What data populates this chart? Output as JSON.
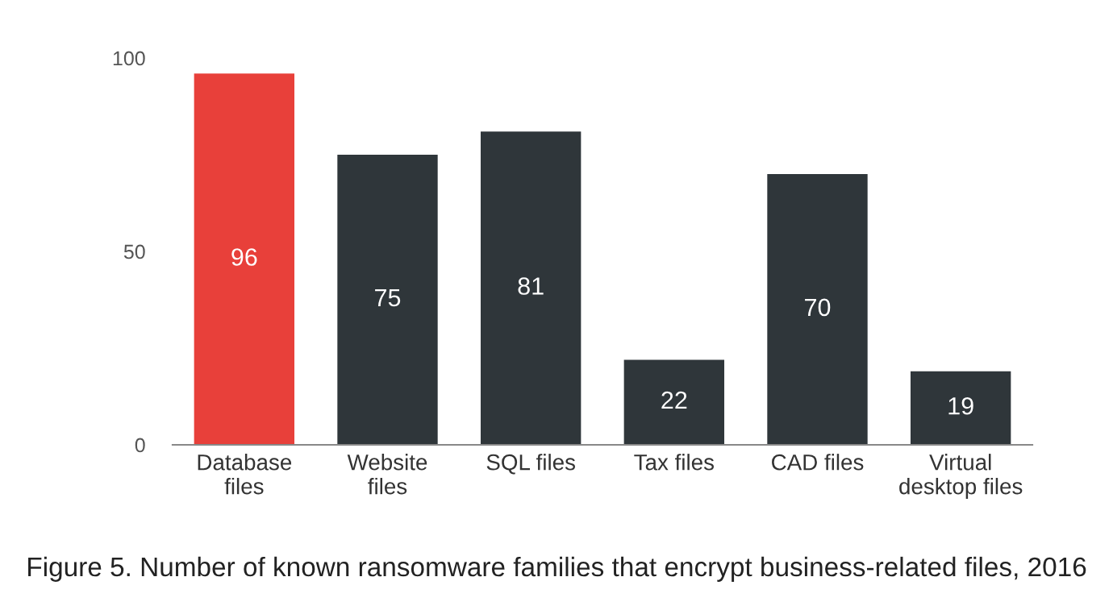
{
  "chart_data": {
    "type": "bar",
    "categories": [
      "Database\nfiles",
      "Website\nfiles",
      "SQL files",
      "Tax files",
      "CAD files",
      "Virtual\ndesktop files"
    ],
    "values": [
      96,
      75,
      81,
      22,
      70,
      19
    ],
    "colors": [
      "#e8403a",
      "#2f363a",
      "#2f363a",
      "#2f363a",
      "#2f363a",
      "#2f363a"
    ],
    "ylim": [
      0,
      100
    ],
    "yticks": [
      0,
      50,
      100
    ],
    "grid": false,
    "data_labels": true,
    "annotations": [
      "Figure 5. Number of known ransomware families that encrypt business-related files, 2016"
    ]
  }
}
